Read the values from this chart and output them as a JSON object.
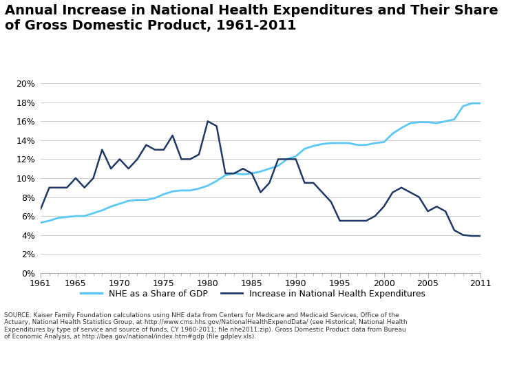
{
  "title": "Annual Increase in National Health Expenditures and Their Share\nof Gross Domestic Product, 1961-2011",
  "title_fontsize": 14,
  "years": [
    1961,
    1962,
    1963,
    1964,
    1965,
    1966,
    1967,
    1968,
    1969,
    1970,
    1971,
    1972,
    1973,
    1974,
    1975,
    1976,
    1977,
    1978,
    1979,
    1980,
    1981,
    1982,
    1983,
    1984,
    1985,
    1986,
    1987,
    1988,
    1989,
    1990,
    1991,
    1992,
    1993,
    1994,
    1995,
    1996,
    1997,
    1998,
    1999,
    2000,
    2001,
    2002,
    2003,
    2004,
    2005,
    2006,
    2007,
    2008,
    2009,
    2010,
    2011
  ],
  "nhe_share_gdp": [
    5.3,
    5.5,
    5.8,
    5.9,
    6.0,
    6.0,
    6.3,
    6.6,
    7.0,
    7.3,
    7.6,
    7.7,
    7.7,
    7.9,
    8.3,
    8.6,
    8.7,
    8.7,
    8.9,
    9.2,
    9.7,
    10.3,
    10.5,
    10.4,
    10.5,
    10.7,
    11.0,
    11.3,
    12.0,
    12.3,
    13.1,
    13.4,
    13.6,
    13.7,
    13.7,
    13.7,
    13.5,
    13.5,
    13.7,
    13.8,
    14.7,
    15.3,
    15.8,
    15.9,
    15.9,
    15.8,
    16.0,
    16.2,
    17.6,
    17.9,
    17.9
  ],
  "nhe_increase": [
    6.7,
    9.0,
    9.0,
    9.0,
    10.0,
    9.0,
    10.0,
    13.0,
    11.0,
    12.0,
    11.0,
    12.0,
    13.5,
    13.0,
    13.0,
    14.5,
    12.0,
    12.0,
    12.5,
    16.0,
    15.5,
    10.5,
    10.5,
    11.0,
    10.5,
    8.5,
    9.5,
    12.0,
    12.0,
    12.0,
    9.5,
    9.5,
    8.5,
    7.5,
    5.5,
    5.5,
    5.5,
    5.5,
    6.0,
    7.0,
    8.5,
    9.0,
    8.5,
    8.0,
    6.5,
    7.0,
    6.5,
    4.5,
    4.0,
    3.9,
    3.9
  ],
  "color_gdp": "#5bc8f5",
  "color_increase": "#1f3864",
  "xtick_labels": [
    "1961",
    "1965",
    "1970",
    "1975",
    "1980",
    "1985",
    "1990",
    "1995",
    "2000",
    "2005",
    "2011"
  ],
  "xtick_positions": [
    1961,
    1965,
    1970,
    1975,
    1980,
    1985,
    1990,
    1995,
    2000,
    2005,
    2011
  ],
  "ylim": [
    0,
    20
  ],
  "ytick_vals": [
    0,
    2,
    4,
    6,
    8,
    10,
    12,
    14,
    16,
    18,
    20
  ],
  "source_text": "SOURCE: Kaiser Family Foundation calculations using NHE data from Centers for Medicare and Medicaid Services, Office of the\nActuary, National Health Statistics Group, at http://www.cms.hhs.gov/NationalHealthExpendData/ (see Historical; National Health\nExpenditures by type of service and source of funds, CY 1960-2011; file nhe2011.zip). Gross Domestic Product data from Bureau\nof Economic Analysis, at http://bea.gov/national/index.htm#gdp (file gdplev.xls).",
  "legend_label_gdp": "NHE as a Share of GDP",
  "legend_label_increase": "Increase in National Health Expenditures",
  "background_color": "#ffffff"
}
